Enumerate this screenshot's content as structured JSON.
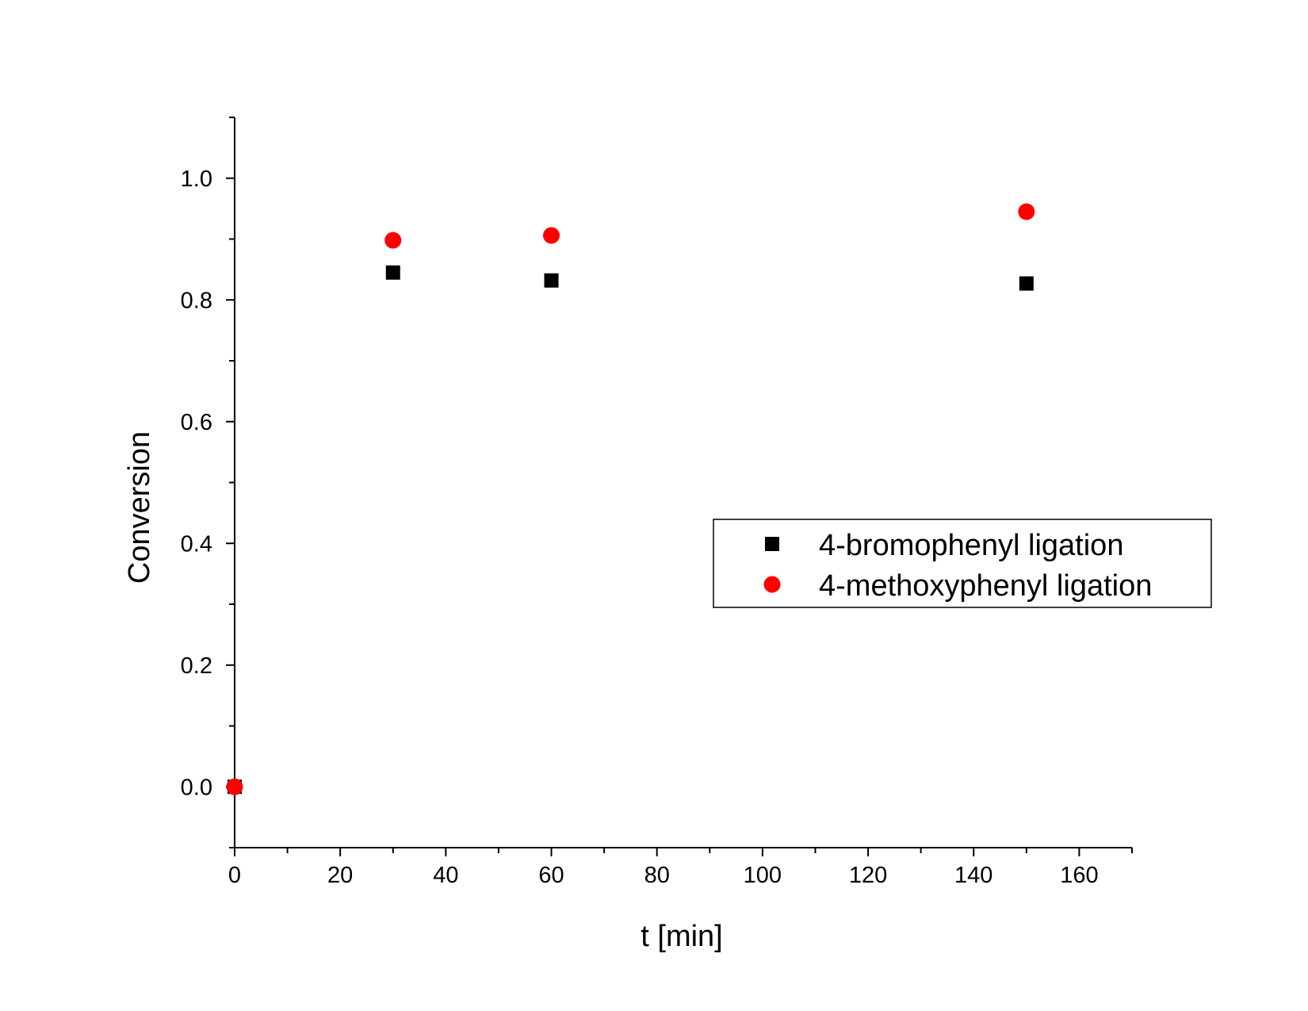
{
  "chart_data": {
    "type": "scatter",
    "title": "",
    "xlabel": "t [min]",
    "ylabel": "Conversion",
    "xlim": [
      0,
      170
    ],
    "ylim": [
      -0.1,
      1.1
    ],
    "x_ticks": [
      0,
      20,
      40,
      60,
      80,
      100,
      120,
      140,
      160
    ],
    "x_tick_labels": [
      "0",
      "20",
      "40",
      "60",
      "80",
      "100",
      "120",
      "140",
      "160"
    ],
    "y_ticks": [
      0.0,
      0.2,
      0.4,
      0.6,
      0.8,
      1.0
    ],
    "y_tick_labels": [
      "0.0",
      "0.2",
      "0.4",
      "0.6",
      "0.8",
      "1.0"
    ],
    "grid": false,
    "legend_position": "center-right",
    "series": [
      {
        "name": "4-bromophenyl ligation",
        "marker": "square",
        "color": "#000000",
        "x": [
          0,
          30,
          60,
          150
        ],
        "y": [
          0.0,
          0.845,
          0.832,
          0.827
        ]
      },
      {
        "name": "4-methoxyphenyl ligation",
        "marker": "circle",
        "color": "#ff0000",
        "x": [
          0,
          30,
          60,
          150
        ],
        "y": [
          0.0,
          0.898,
          0.906,
          0.945
        ]
      }
    ]
  }
}
